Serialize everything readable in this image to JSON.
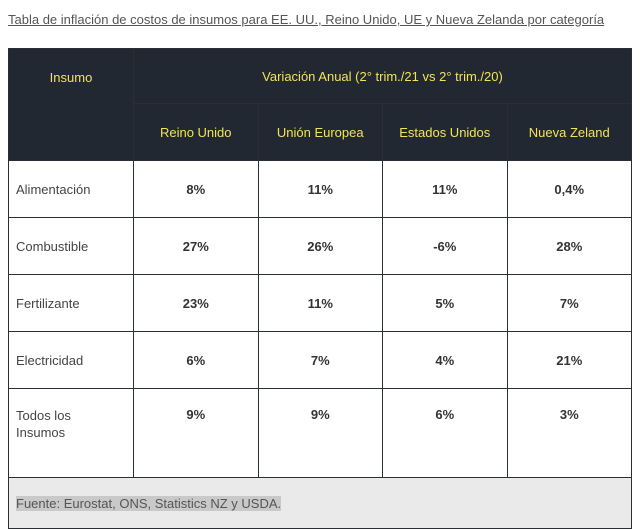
{
  "header": {
    "title": "Tabla de inflación de costos de insumos para EE. UU., Reino Unido, UE y Nueva Zelanda por categoría"
  },
  "table": {
    "corner": "Insumo",
    "group": "Variación Anual (2° trim./21 vs 2° trim./20)",
    "columns": [
      "Reino Unido",
      "Unión Europea",
      "Estados Unidos",
      "Nueva Zeland"
    ],
    "rows": [
      [
        "Alimentación",
        "8%",
        "11%",
        "11%",
        "0,4%"
      ],
      [
        "Combustible",
        "27%",
        "26%",
        "-6%",
        "28%"
      ],
      [
        "Fertilizante",
        "23%",
        "11%",
        "5%",
        "7%"
      ],
      [
        "Electricidad",
        "6%",
        "7%",
        "4%",
        "21%"
      ],
      [
        "Todos los Insumos",
        "9%",
        "9%",
        "6%",
        "3%"
      ]
    ]
  },
  "source": "Fuente: Eurostat, ONS, Statistics NZ y USDA."
}
